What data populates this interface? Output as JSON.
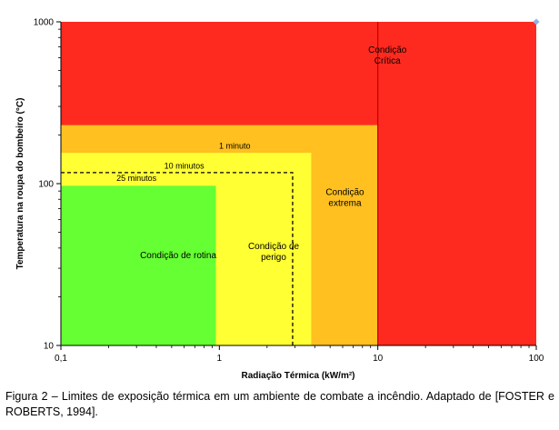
{
  "chart_data": {
    "type": "area",
    "xlabel": "Radiação Térmica (kW/m²)",
    "ylabel": "Temperatura na roupa do bombeiro (°C)",
    "xlim": [
      0.1,
      100
    ],
    "ylim": [
      10,
      1000
    ],
    "xscale": "log",
    "yscale": "log",
    "x_ticks": [
      {
        "value": 0.1,
        "label": "0,1"
      },
      {
        "value": 1,
        "label": "1"
      },
      {
        "value": 10,
        "label": "10"
      },
      {
        "value": 100,
        "label": "100"
      }
    ],
    "y_ticks": [
      {
        "value": 10,
        "label": "10"
      },
      {
        "value": 100,
        "label": "100"
      },
      {
        "value": 1000,
        "label": "1000"
      }
    ],
    "grid": false,
    "regions": [
      {
        "name": "Condição Crítica",
        "label_lines": [
          "Condição",
          "Crítica"
        ],
        "x": [
          0.1,
          100
        ],
        "y": [
          10,
          1000
        ],
        "color": "#ff2a1f",
        "label_at": [
          11.5,
          620
        ]
      },
      {
        "name": "Condição extrema",
        "label_lines": [
          "Condição",
          "extrema"
        ],
        "x": [
          0.1,
          10
        ],
        "y": [
          10,
          230
        ],
        "color": "#ffc020",
        "label_at": [
          6.2,
          82
        ]
      },
      {
        "name": "Condição de perigo",
        "label_lines": [
          "Condição de",
          "perigo"
        ],
        "x": [
          0.1,
          3.8
        ],
        "y": [
          10,
          155
        ],
        "color": "#ffff33",
        "label_at": [
          2.2,
          38
        ]
      },
      {
        "name": "Condição de rotina",
        "label_lines": [
          "Condição de rotina"
        ],
        "x": [
          0.1,
          0.95
        ],
        "y": [
          10,
          97
        ],
        "color": "#66ff33",
        "label_at": [
          0.55,
          36
        ]
      }
    ],
    "boundaries": [
      {
        "type": "solid-vline",
        "x": 10,
        "y": [
          10,
          1000
        ],
        "color": "#c00000"
      },
      {
        "type": "dashed-box",
        "x": [
          0.1,
          2.9
        ],
        "y": [
          10,
          117
        ],
        "color": "#000000"
      }
    ],
    "annotations": [
      {
        "text": "1 minuto",
        "x": 1.25,
        "y": 165
      },
      {
        "text": "10 minutos",
        "x": 0.6,
        "y": 124
      },
      {
        "text": "25 minutos",
        "x": 0.3,
        "y": 104
      }
    ],
    "markers": [
      {
        "x": 100,
        "y": 1000,
        "color": "#8db3e2"
      }
    ]
  },
  "caption": "Figura 2 – Limites de exposição térmica em um ambiente de combate a incêndio. Adaptado de [FOSTER e ROBERTS, 1994]."
}
